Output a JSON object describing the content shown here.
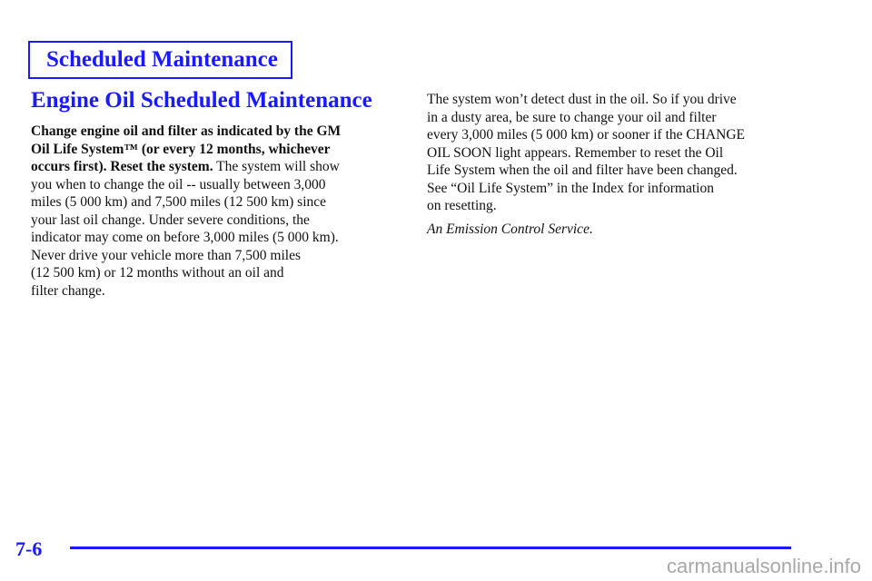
{
  "header": {
    "section_title": "Scheduled Maintenance"
  },
  "main": {
    "title": "Engine Oil Scheduled Maintenance",
    "left_lines": [
      {
        "bold": "Change engine oil and filter as indicated by the GM",
        "normal": ""
      },
      {
        "bold": "Oil Life System™ (or every 12 months, whichever",
        "normal": ""
      },
      {
        "bold": "occurs first). Reset the system.",
        "normal": " The system will show"
      },
      {
        "bold": "",
        "normal": "you when to change the oil -- usually between 3,000"
      },
      {
        "bold": "",
        "normal": "miles (5 000 km) and 7,500 miles (12 500 km) since"
      },
      {
        "bold": "",
        "normal": "your last oil change. Under severe conditions, the"
      },
      {
        "bold": "",
        "normal": "indicator may come on before 3,000 miles (5 000 km)."
      },
      {
        "bold": "",
        "normal": "Never drive your vehicle more than 7,500 miles"
      },
      {
        "bold": "",
        "normal": "(12 500 km) or 12 months without an oil and"
      },
      {
        "bold": "",
        "normal": "filter change."
      }
    ],
    "right_lines": [
      "The system won’t detect dust in the oil. So if you drive",
      "in a dusty area, be sure to change your oil and filter",
      "every 3,000 miles (5 000 km) or sooner if the CHANGE",
      "OIL SOON light appears. Remember to reset the Oil",
      "Life System when the oil and filter have been changed.",
      "See “Oil Life System” in the Index for information",
      "on resetting."
    ],
    "note": "An Emission Control Service."
  },
  "footer": {
    "page_number": "7-6",
    "watermark": "carmanualsonline.info"
  },
  "colors": {
    "accent": "#1a1aff",
    "text": "#111111",
    "watermark": "#a8a8a8"
  }
}
